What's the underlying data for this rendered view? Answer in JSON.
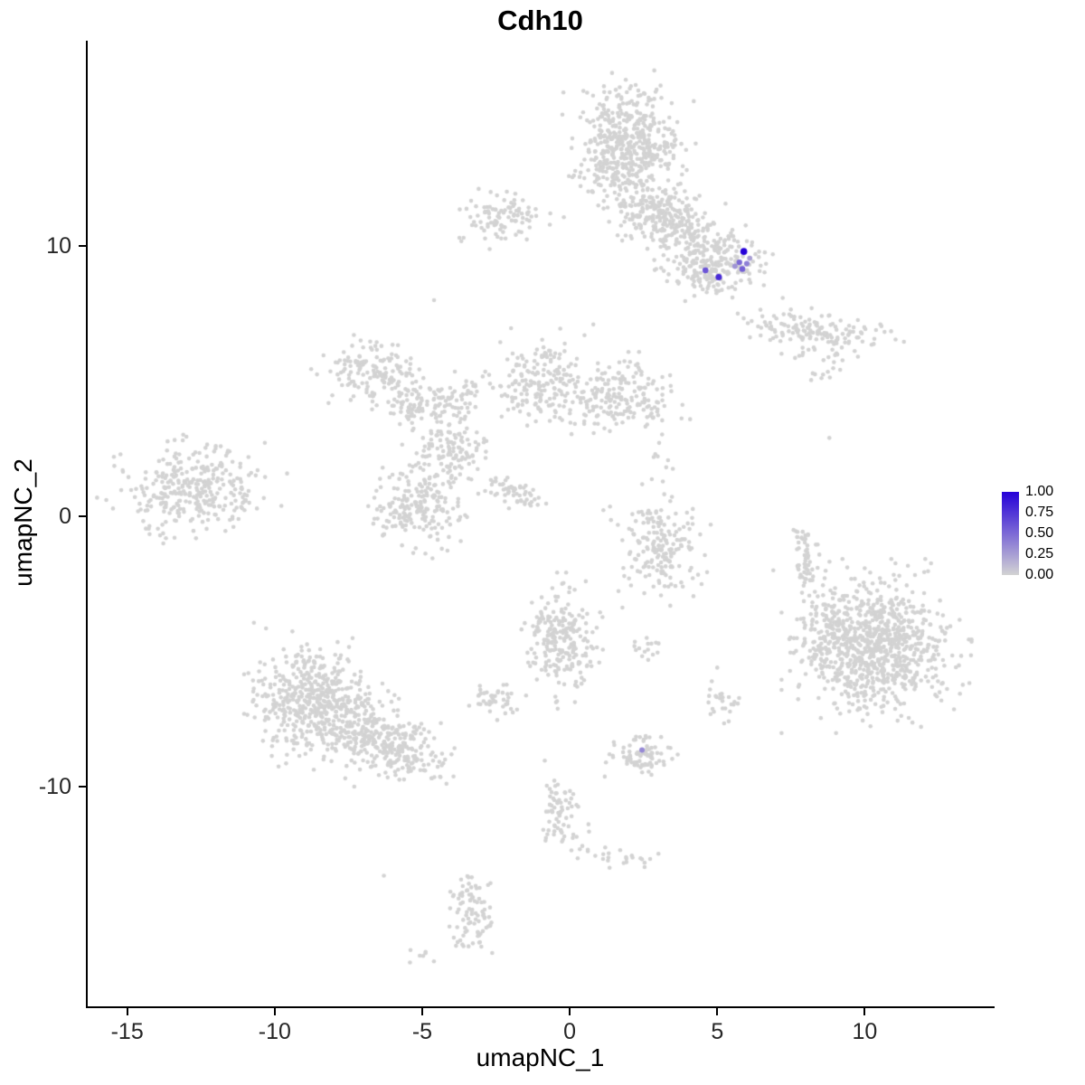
{
  "title": "Cdh10",
  "legend": {
    "labels": [
      "1.00",
      "0.75",
      "0.50",
      "0.25",
      "0.00"
    ],
    "high_color": "#2500D8",
    "low_color": "#D3D3D3"
  },
  "chart_data": {
    "type": "scatter",
    "title": "Cdh10",
    "xlabel": "umapNC_1",
    "ylabel": "umapNC_2",
    "xlim": [
      -16.4,
      14.4
    ],
    "ylim": [
      -18.2,
      17.6
    ],
    "x_ticks": [
      -15,
      -10,
      -5,
      0,
      5,
      10
    ],
    "y_ticks": [
      10,
      0,
      -10
    ],
    "grid": false,
    "legend_position": "right",
    "color_scale": {
      "low": "#D3D3D3",
      "high": "#2500D8",
      "domain": [
        0,
        1
      ]
    },
    "clusters": [
      {
        "cx": 1.9,
        "cy": 13.7,
        "sx": 0.85,
        "sy": 1.0,
        "n": 520
      },
      {
        "cx": 2.7,
        "cy": 11.3,
        "sx": 0.7,
        "sy": 0.5,
        "n": 140
      },
      {
        "cx": 3.7,
        "cy": 10.8,
        "sx": 0.6,
        "sy": 0.5,
        "n": 110
      },
      {
        "cx": 4.9,
        "cy": 9.6,
        "sx": 0.85,
        "sy": 0.55,
        "n": 200
      },
      {
        "cx": 4.7,
        "cy": 8.8,
        "sx": 0.5,
        "sy": 0.35,
        "n": 60
      },
      {
        "cx": -2.3,
        "cy": 11.0,
        "sx": 0.75,
        "sy": 0.45,
        "n": 100
      },
      {
        "cx": 8.3,
        "cy": 6.8,
        "sx": 1.1,
        "sy": 0.4,
        "n": 160,
        "rot": -8
      },
      {
        "cx": 8.7,
        "cy": 5.3,
        "sx": 0.3,
        "sy": 0.25,
        "n": 12
      },
      {
        "cx": -6.7,
        "cy": 5.4,
        "sx": 0.75,
        "sy": 0.55,
        "n": 150
      },
      {
        "cx": -5.3,
        "cy": 4.1,
        "sx": 0.5,
        "sy": 0.4,
        "n": 70
      },
      {
        "cx": -3.9,
        "cy": 4.3,
        "sx": 0.6,
        "sy": 0.4,
        "n": 70,
        "rot": 20
      },
      {
        "cx": -0.9,
        "cy": 5.0,
        "sx": 0.8,
        "sy": 0.7,
        "n": 190
      },
      {
        "cx": 1.7,
        "cy": 4.4,
        "sx": 0.85,
        "sy": 0.6,
        "n": 190
      },
      {
        "cx": -4.0,
        "cy": 2.4,
        "sx": 0.6,
        "sy": 0.5,
        "n": 110
      },
      {
        "cx": -5.2,
        "cy": 0.4,
        "sx": 0.75,
        "sy": 0.75,
        "n": 210
      },
      {
        "cx": -1.9,
        "cy": 0.9,
        "sx": 0.6,
        "sy": 0.22,
        "n": 55,
        "rot": -25
      },
      {
        "cx": -12.8,
        "cy": 1.0,
        "sx": 1.15,
        "sy": 0.75,
        "n": 320
      },
      {
        "cx": 3.1,
        "cy": -1.1,
        "sx": 0.7,
        "sy": 0.85,
        "n": 190
      },
      {
        "cx": 2.9,
        "cy": 1.5,
        "sx": 0.35,
        "sy": 0.5,
        "n": 10
      },
      {
        "cx": 7.95,
        "cy": -1.6,
        "sx": 0.22,
        "sy": 0.7,
        "n": 60
      },
      {
        "cx": 10.4,
        "cy": -4.8,
        "sx": 1.15,
        "sy": 1.15,
        "n": 850
      },
      {
        "cx": 8.6,
        "cy": -4.3,
        "sx": 0.5,
        "sy": 1.0,
        "n": 90
      },
      {
        "cx": -0.3,
        "cy": -4.6,
        "sx": 0.6,
        "sy": 0.9,
        "n": 230
      },
      {
        "cx": 2.6,
        "cy": -4.9,
        "sx": 0.3,
        "sy": 0.25,
        "n": 15
      },
      {
        "cx": 5.2,
        "cy": -6.9,
        "sx": 0.35,
        "sy": 0.3,
        "n": 25
      },
      {
        "cx": -8.6,
        "cy": -6.9,
        "sx": 1.0,
        "sy": 0.95,
        "n": 520,
        "rot": -15
      },
      {
        "cx": -6.4,
        "cy": -8.2,
        "sx": 1.0,
        "sy": 0.65,
        "n": 260,
        "rot": -20
      },
      {
        "cx": -5.0,
        "cy": -9.1,
        "sx": 0.5,
        "sy": 0.4,
        "n": 40
      },
      {
        "cx": -2.6,
        "cy": -6.7,
        "sx": 0.4,
        "sy": 0.3,
        "n": 40
      },
      {
        "cx": 2.45,
        "cy": -8.9,
        "sx": 0.5,
        "sy": 0.4,
        "n": 85
      },
      {
        "cx": -0.25,
        "cy": -11.0,
        "sx": 0.4,
        "sy": 0.7,
        "n": 70
      },
      {
        "cx": 0.6,
        "cy": -12.4,
        "sx": 0.3,
        "sy": 0.18,
        "n": 12
      },
      {
        "cx": 2.1,
        "cy": -12.7,
        "sx": 0.4,
        "sy": 0.2,
        "n": 15
      },
      {
        "cx": -3.3,
        "cy": -14.8,
        "sx": 0.35,
        "sy": 0.8,
        "n": 90,
        "rot": 10
      },
      {
        "cx": -4.9,
        "cy": -16.4,
        "sx": 0.3,
        "sy": 0.15,
        "n": 7
      }
    ],
    "outlier_points": [
      [
        0.8,
        7.1
      ],
      [
        0.5,
        6.7
      ],
      [
        -4.6,
        8.0
      ],
      [
        8.8,
        2.9
      ],
      [
        6.9,
        -2.0
      ],
      [
        2.9,
        2.3
      ],
      [
        -6.3,
        -13.3
      ],
      [
        5.0,
        -5.6
      ]
    ],
    "expressing_cells": [
      {
        "x": 5.9,
        "y": 9.8,
        "value": 1.0
      },
      {
        "x": 5.75,
        "y": 9.4,
        "value": 0.5
      },
      {
        "x": 6.0,
        "y": 9.35,
        "value": 0.4
      },
      {
        "x": 5.6,
        "y": 9.25,
        "value": 0.3
      },
      {
        "x": 5.85,
        "y": 9.15,
        "value": 0.55
      },
      {
        "x": 6.1,
        "y": 9.55,
        "value": 0.25
      },
      {
        "x": 5.05,
        "y": 8.85,
        "value": 0.8
      },
      {
        "x": 4.6,
        "y": 9.1,
        "value": 0.6
      },
      {
        "x": 2.45,
        "y": -8.65,
        "value": 0.35
      }
    ]
  }
}
